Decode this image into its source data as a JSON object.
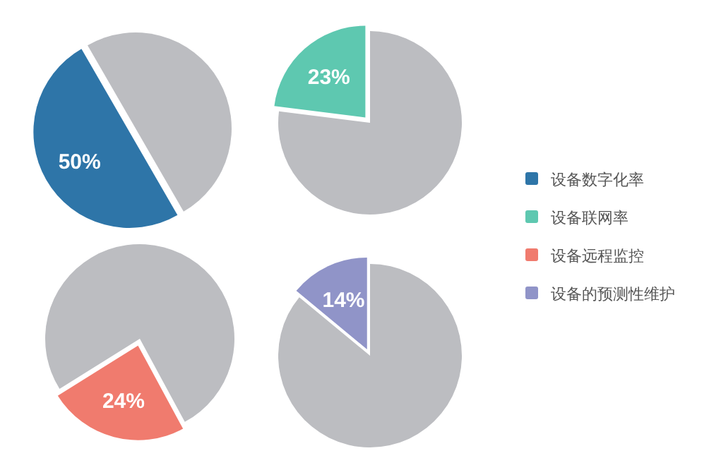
{
  "chart_data": [
    {
      "type": "pie",
      "categories": [
        "设备数字化率",
        null
      ],
      "values": [
        50,
        50
      ],
      "colors": [
        "#2e75a8",
        "#bcbdc1"
      ],
      "value_labels": [
        "50%",
        null
      ],
      "legend": "right"
    },
    {
      "type": "pie",
      "categories": [
        "设备联网率",
        null
      ],
      "values": [
        23,
        77
      ],
      "colors": [
        "#5ec8b0",
        "#bcbdc1"
      ],
      "value_labels": [
        "23%",
        null
      ],
      "legend": "right"
    },
    {
      "type": "pie",
      "categories": [
        "设备远程监控",
        null
      ],
      "values": [
        24,
        76
      ],
      "colors": [
        "#f07b6e",
        "#bcbdc1"
      ],
      "value_labels": [
        "24%",
        null
      ],
      "legend": "right"
    },
    {
      "type": "pie",
      "categories": [
        "设备的预测性维护",
        null
      ],
      "values": [
        14,
        86
      ],
      "colors": [
        "#9094c8",
        "#bcbdc1"
      ],
      "value_labels": [
        "14%",
        null
      ],
      "legend": "right"
    }
  ]
}
